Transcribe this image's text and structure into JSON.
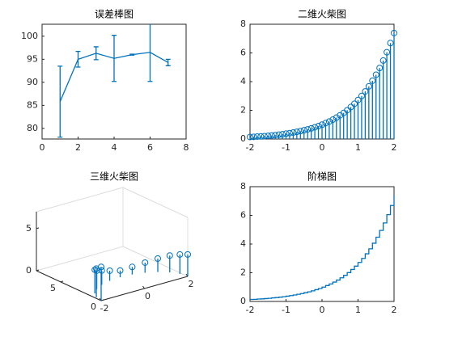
{
  "chart_data": [
    {
      "type": "errorbar",
      "title": "误差棒图",
      "color": "#0072bd",
      "x": [
        1,
        2,
        3,
        4,
        5,
        6,
        7
      ],
      "values": [
        85.8,
        95,
        96.3,
        95.2,
        96,
        96.5,
        94.3
      ],
      "errors": [
        7.7,
        1.7,
        1.4,
        5,
        0.1,
        6.3,
        0.7
      ],
      "xlim": [
        0,
        8
      ],
      "xticks": [
        0,
        2,
        4,
        6,
        8
      ],
      "ylim": [
        77.7,
        102.6
      ],
      "yticks": [
        80,
        85,
        90,
        95,
        100
      ]
    },
    {
      "type": "stem",
      "title": "二维火柴图",
      "color": "#0072bd",
      "x": [
        -2,
        -1.9,
        -1.8,
        -1.7,
        -1.6,
        -1.5,
        -1.4,
        -1.3,
        -1.2,
        -1.1,
        -1,
        -0.9,
        -0.8,
        -0.7,
        -0.6,
        -0.5,
        -0.4,
        -0.3,
        -0.2,
        -0.1,
        0,
        0.1,
        0.2,
        0.3,
        0.4,
        0.5,
        0.6,
        0.7,
        0.8,
        0.9,
        1,
        1.1,
        1.2,
        1.3,
        1.4,
        1.5,
        1.6,
        1.7,
        1.8,
        1.9,
        2
      ],
      "values": [
        0.14,
        0.15,
        0.17,
        0.18,
        0.2,
        0.22,
        0.25,
        0.27,
        0.3,
        0.33,
        0.37,
        0.41,
        0.45,
        0.5,
        0.55,
        0.61,
        0.67,
        0.74,
        0.82,
        0.9,
        1,
        1.11,
        1.22,
        1.35,
        1.49,
        1.65,
        1.82,
        2.01,
        2.23,
        2.46,
        2.72,
        3,
        3.32,
        3.67,
        4.06,
        4.48,
        4.95,
        5.47,
        6.05,
        6.69,
        7.39
      ],
      "xlim": [
        -2,
        2
      ],
      "xticks": [
        -2,
        -1,
        0,
        1,
        2
      ],
      "ylim": [
        0,
        8
      ],
      "yticks": [
        0,
        2,
        4,
        6,
        8
      ]
    },
    {
      "type": "stem3",
      "title": "三维火柴图",
      "color": "#0072bd",
      "x": [
        -2,
        -1.93,
        -1.73,
        -1.41,
        -1,
        -0.52,
        0,
        0.52,
        1,
        1.41,
        1.73,
        1.93,
        2
      ],
      "y": [
        0,
        0.78,
        1.5,
        2.12,
        2.6,
        2.9,
        3,
        2.9,
        2.6,
        2.12,
        1.5,
        0.78,
        0
      ],
      "values": [
        4,
        3.4,
        2.8,
        2.2,
        1.7,
        1.2,
        0.8,
        0.9,
        1.2,
        1.6,
        2,
        2.3,
        2.6
      ],
      "xlim": [
        -2,
        2
      ],
      "xticks": [
        -2,
        0,
        2
      ],
      "ylim": [
        0,
        8
      ],
      "yticks": [
        0,
        5
      ],
      "zlim": [
        0,
        7
      ],
      "zticks": [
        0,
        5
      ]
    },
    {
      "type": "stairs",
      "title": "阶梯图",
      "color": "#0072bd",
      "x": [
        -2,
        -1.9,
        -1.8,
        -1.7,
        -1.6,
        -1.5,
        -1.4,
        -1.3,
        -1.2,
        -1.1,
        -1,
        -0.9,
        -0.8,
        -0.7,
        -0.6,
        -0.5,
        -0.4,
        -0.3,
        -0.2,
        -0.1,
        0,
        0.1,
        0.2,
        0.3,
        0.4,
        0.5,
        0.6,
        0.7,
        0.8,
        0.9,
        1,
        1.1,
        1.2,
        1.3,
        1.4,
        1.5,
        1.6,
        1.7,
        1.8,
        1.9,
        2
      ],
      "values": [
        0.14,
        0.15,
        0.17,
        0.18,
        0.2,
        0.22,
        0.25,
        0.27,
        0.3,
        0.33,
        0.37,
        0.41,
        0.45,
        0.5,
        0.55,
        0.61,
        0.67,
        0.74,
        0.82,
        0.9,
        1,
        1.11,
        1.22,
        1.35,
        1.49,
        1.65,
        1.82,
        2.01,
        2.23,
        2.46,
        2.72,
        3,
        3.32,
        3.67,
        4.06,
        4.48,
        4.95,
        5.47,
        6.05,
        6.69,
        7.39
      ],
      "xlim": [
        -2,
        2
      ],
      "xticks": [
        -2,
        -1,
        0,
        1,
        2
      ],
      "ylim": [
        0,
        8
      ],
      "yticks": [
        0,
        2,
        4,
        6,
        8
      ]
    }
  ]
}
